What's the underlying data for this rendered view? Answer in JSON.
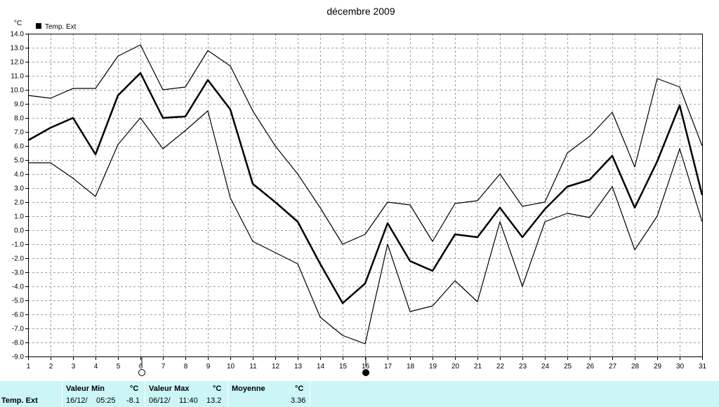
{
  "chart_data": {
    "type": "line",
    "title": "décembre 2009",
    "y_unit": "°C",
    "legend": {
      "label": "Temp. Ext",
      "placement": "top-left"
    },
    "ylim": [
      -9.0,
      14.0
    ],
    "y_ticks": [
      "14.0",
      "13.0",
      "12.0",
      "11.0",
      "10.0",
      "9.0",
      "8.0",
      "7.0",
      "6.0",
      "5.0",
      "4.0",
      "3.0",
      "2.0",
      "1.0",
      "0.0",
      "-1.0",
      "-2.0",
      "-3.0",
      "-4.0",
      "-5.0",
      "-6.0",
      "-7.0",
      "-8.0",
      "-9.0"
    ],
    "x": [
      1,
      2,
      3,
      4,
      5,
      6,
      7,
      8,
      9,
      10,
      11,
      12,
      13,
      14,
      15,
      16,
      17,
      18,
      19,
      20,
      21,
      22,
      23,
      24,
      25,
      26,
      27,
      28,
      29,
      30,
      31
    ],
    "grid": true,
    "series": [
      {
        "role": "max",
        "values": [
          9.6,
          9.4,
          10.1,
          10.1,
          12.4,
          13.2,
          10.0,
          10.2,
          12.8,
          11.7,
          8.5,
          6.0,
          4.0,
          1.6,
          -1.0,
          -0.3,
          2.0,
          1.8,
          -0.8,
          1.9,
          2.1,
          4.0,
          1.7,
          2.0,
          5.5,
          6.7,
          8.4,
          4.5,
          10.8,
          10.2,
          6.0
        ]
      },
      {
        "role": "mean",
        "values": [
          6.4,
          7.3,
          8.0,
          5.4,
          9.6,
          11.2,
          8.0,
          8.1,
          10.7,
          8.6,
          3.3,
          2.0,
          0.6,
          -2.4,
          -5.2,
          -3.8,
          0.5,
          -2.2,
          -2.9,
          -0.3,
          -0.5,
          1.6,
          -0.5,
          1.5,
          3.1,
          3.6,
          5.3,
          1.6,
          4.9,
          8.9,
          2.5
        ]
      },
      {
        "role": "min",
        "values": [
          4.8,
          4.8,
          3.7,
          2.4,
          6.1,
          8.0,
          5.8,
          7.1,
          8.5,
          2.3,
          -0.8,
          -1.6,
          -2.4,
          -6.2,
          -7.5,
          -8.1,
          -1.0,
          -5.8,
          -5.4,
          -3.6,
          -5.1,
          0.6,
          -4.0,
          0.6,
          1.2,
          0.9,
          3.1,
          -1.4,
          1.0,
          5.8,
          0.6
        ]
      }
    ],
    "markers": [
      {
        "kind": "min",
        "x": 16
      },
      {
        "kind": "max",
        "x": 6
      }
    ],
    "colors": {
      "line": "#000000",
      "grid": "#a0a0a0",
      "background": "#ffffff",
      "statsbar": "#ccf5f5",
      "marker_fill": "#000000"
    }
  },
  "stats": {
    "row_label": "Temp. Ext",
    "min": {
      "header": "Valeur Min",
      "unit": "°C",
      "date": "16/12/",
      "time": "05:25",
      "value": "-8.1"
    },
    "max": {
      "header": "Valeur Max",
      "unit": "°C",
      "date": "06/12/",
      "time": "11:40",
      "value": "13.2"
    },
    "mean": {
      "header": "Moyenne",
      "unit": "°C",
      "value": "3.36"
    }
  }
}
